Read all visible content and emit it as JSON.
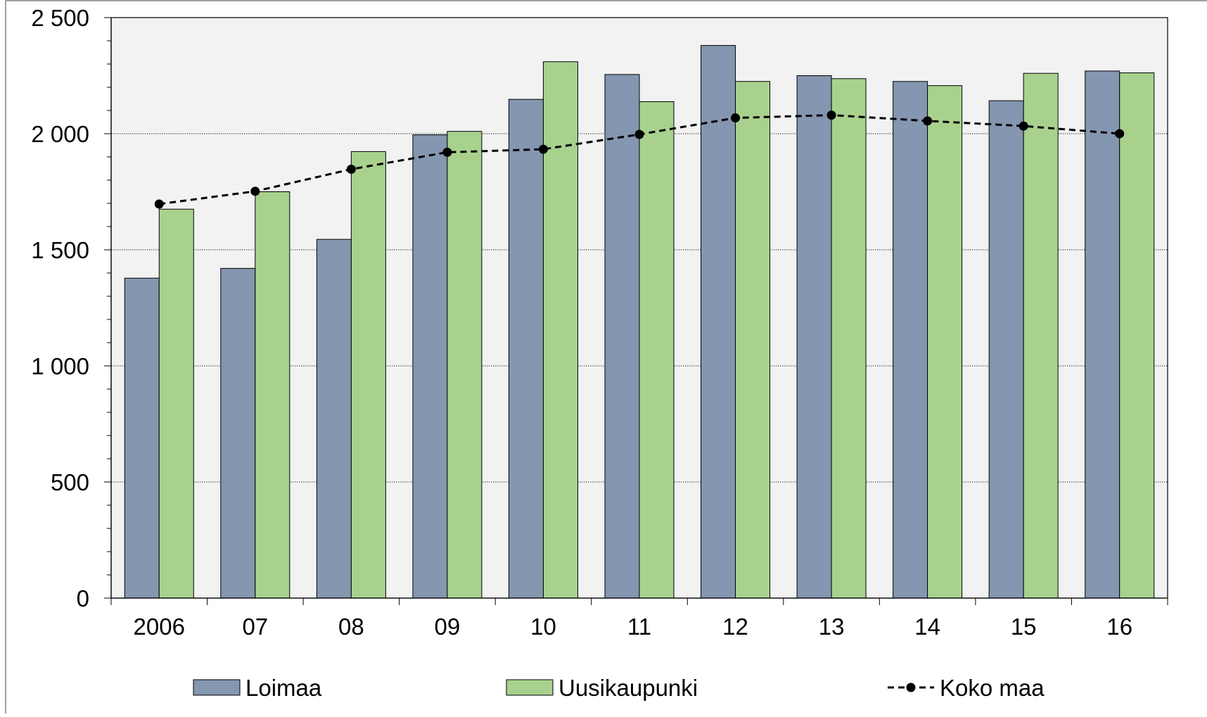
{
  "chart_data": {
    "type": "bar",
    "categories": [
      "2006",
      "07",
      "08",
      "09",
      "10",
      "11",
      "12",
      "13",
      "14",
      "15",
      "16"
    ],
    "series": [
      {
        "name": "Loimaa",
        "kind": "bar",
        "color": "#8496b0",
        "values": [
          1378,
          1420,
          1545,
          1995,
          2148,
          2255,
          2380,
          2250,
          2225,
          2142,
          2270
        ]
      },
      {
        "name": "Uusikaupunki",
        "kind": "bar",
        "color": "#a9d18e",
        "values": [
          1675,
          1750,
          1923,
          2010,
          2310,
          2138,
          2225,
          2237,
          2207,
          2260,
          2262
        ]
      },
      {
        "name": "Koko maa",
        "kind": "line",
        "style": "dashed",
        "marker": "circle",
        "color": "#000000",
        "values": [
          1697,
          1752,
          1847,
          1920,
          1933,
          1997,
          2068,
          2080,
          2055,
          2033,
          2000
        ]
      }
    ],
    "ylim": [
      0,
      2500
    ],
    "yticks": [
      0,
      500,
      1000,
      1500,
      2000,
      2500
    ],
    "ytick_labels": [
      "0",
      "500",
      "1 000",
      "1 500",
      "2 000",
      "2 500"
    ],
    "title": "",
    "xlabel": "",
    "ylabel": "",
    "grid": "horizontal-major",
    "legend": "bottom",
    "plot_background": "#f2f2f2"
  }
}
